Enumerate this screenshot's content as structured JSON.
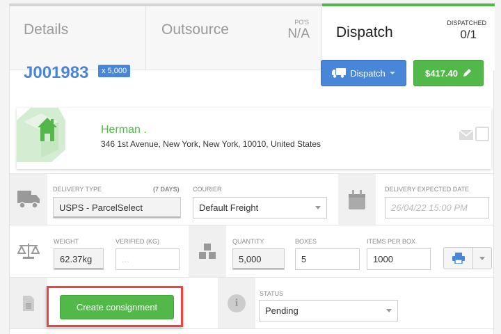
{
  "tabs": {
    "details": {
      "label": "Details"
    },
    "outsource": {
      "label": "Outsource",
      "po_label": "PO'S",
      "po_value": "N/A"
    },
    "dispatch": {
      "label": "Dispatch",
      "dispatched_label": "DISPATCHED",
      "dispatched_value": "0/1"
    }
  },
  "header": {
    "job_number": "J001983",
    "quantity_badge": "x 5,000",
    "dispatch_button": "Dispatch",
    "price_button": "$417.40"
  },
  "address": {
    "name": "Herman .",
    "line": "346 1st Avenue, New York, New York, 10010, United States"
  },
  "delivery": {
    "type_label": "DELIVERY TYPE",
    "type_days": "(7 DAYS)",
    "type_value": "USPS - ParcelSelect",
    "courier_label": "COURIER",
    "courier_value": "Default Freight",
    "date_label": "DELIVERY EXPECTED DATE",
    "date_placeholder": "26/04/22 15:00 PM"
  },
  "weights": {
    "weight_label": "WEIGHT",
    "weight_value": "62.37kg",
    "verified_label": "VERIFIED (KG)",
    "verified_placeholder": "...",
    "quantity_label": "QUANTITY",
    "quantity_value": "5,000",
    "boxes_label": "BOXES",
    "boxes_value": "5",
    "items_label": "ITEMS PER BOX",
    "items_value": "1000"
  },
  "consignment": {
    "create_button": "Create consignment",
    "status_label": "STATUS",
    "status_value": "Pending"
  },
  "colors": {
    "accent_blue": "#4a86d8",
    "accent_green": "#52b849",
    "highlight_red": "#e84545"
  }
}
